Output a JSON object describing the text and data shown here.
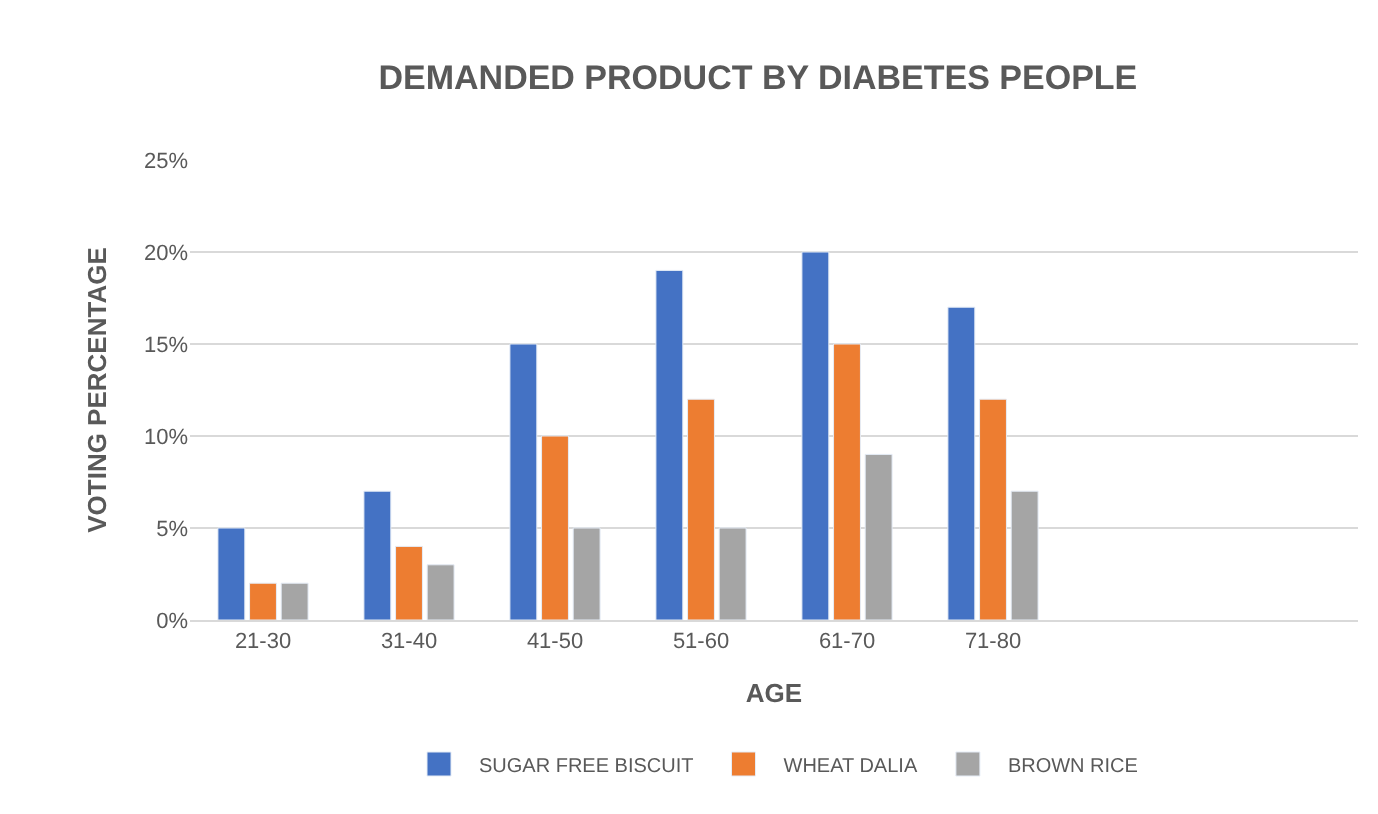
{
  "chart_data": {
    "type": "bar",
    "title": "DEMANDED PRODUCT BY DIABETES PEOPLE",
    "xlabel": "AGE",
    "ylabel": "VOTING PERCENTAGE",
    "categories": [
      "21-30",
      "31-40",
      "41-50",
      "51-60",
      "61-70",
      "71-80",
      null,
      null
    ],
    "series": [
      {
        "name": "SUGAR FREE BISCUIT",
        "color": "#4472c4",
        "values": [
          5,
          7,
          15,
          19,
          20,
          17,
          null,
          null
        ]
      },
      {
        "name": "WHEAT DALIA",
        "color": "#ed7d31",
        "values": [
          2,
          4,
          10,
          12,
          15,
          12,
          null,
          null
        ]
      },
      {
        "name": "BROWN RICE",
        "color": "#a5a5a5",
        "values": [
          2,
          3,
          5,
          5,
          9,
          7,
          null,
          null
        ]
      }
    ],
    "ylim": [
      0,
      25
    ],
    "yticks": [
      {
        "value": 0,
        "label": "0%"
      },
      {
        "value": 5,
        "label": "5%"
      },
      {
        "value": 10,
        "label": "10%"
      },
      {
        "value": 15,
        "label": "15%"
      },
      {
        "value": 20,
        "label": "20%"
      },
      {
        "value": 25,
        "label": "25%"
      }
    ],
    "grid": "y",
    "legend": "bottom"
  }
}
